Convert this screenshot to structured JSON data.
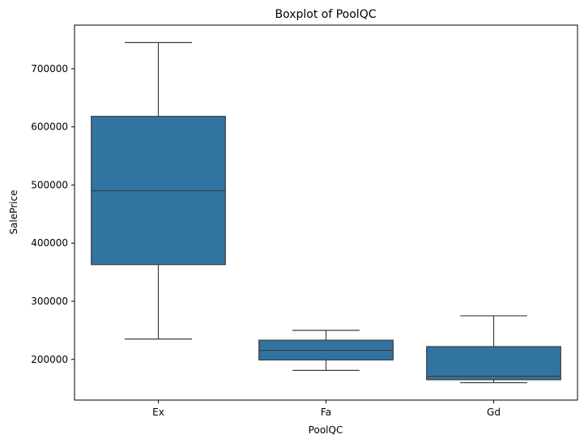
{
  "chart_data": {
    "type": "boxplot",
    "title": "Boxplot of PoolQC",
    "xlabel": "PoolQC",
    "ylabel": "SalePrice",
    "ylim": [
      130000,
      775000
    ],
    "yticks": [
      200000,
      300000,
      400000,
      500000,
      600000,
      700000
    ],
    "ytick_labels": [
      "200000",
      "300000",
      "400000",
      "500000",
      "600000",
      "700000"
    ],
    "grid": false,
    "box_color": "#3274a1",
    "line_color": "#3d3d3d",
    "categories": [
      "Ex",
      "Fa",
      "Gd"
    ],
    "boxes": [
      {
        "category": "Ex",
        "whislo": 235000,
        "q1": 363000,
        "med": 490000,
        "q3": 618000,
        "whishi": 745000
      },
      {
        "category": "Fa",
        "whislo": 181000,
        "q1": 199000,
        "med": 215500,
        "q3": 233000,
        "whishi": 250000
      },
      {
        "category": "Gd",
        "whislo": 160000,
        "q1": 165000,
        "med": 171000,
        "q3": 222000,
        "whishi": 275000
      }
    ]
  }
}
